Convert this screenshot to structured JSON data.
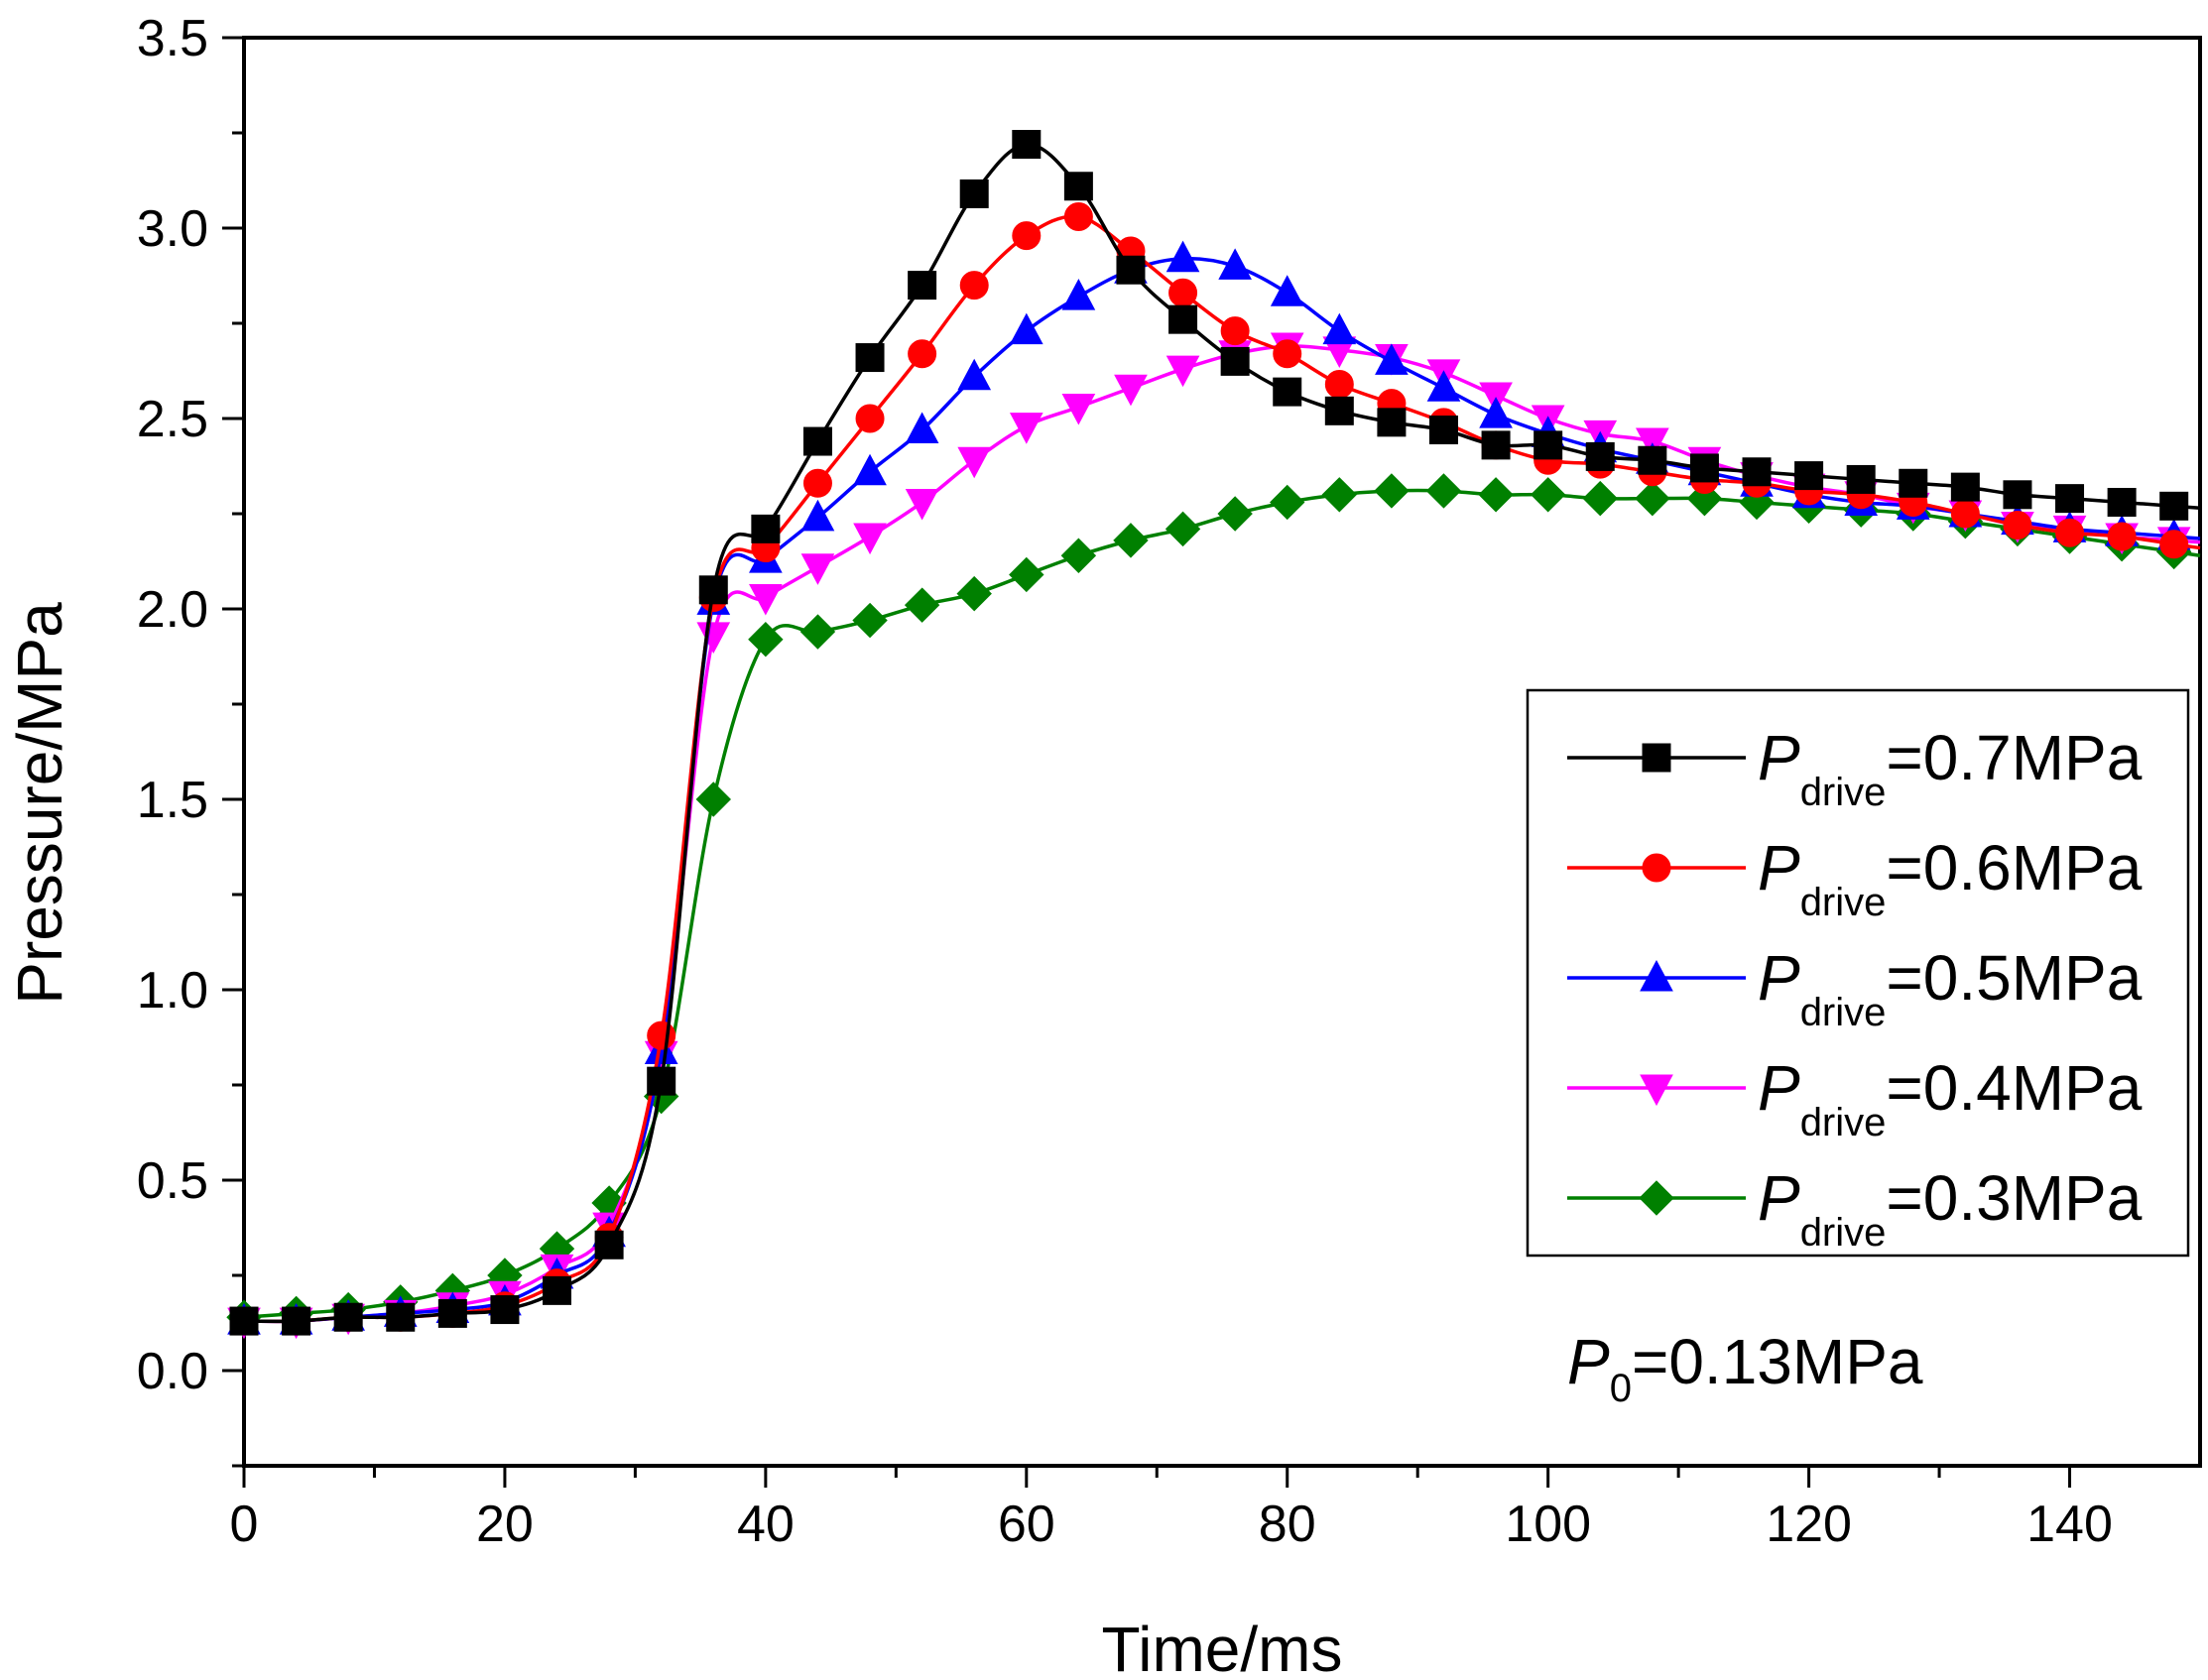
{
  "chart_data": {
    "type": "line",
    "title": "",
    "xlabel": "Time/ms",
    "ylabel": "Pressure/MPa",
    "xlim": [
      0,
      150
    ],
    "ylim": [
      -0.25,
      3.5
    ],
    "xticks": [
      0,
      20,
      40,
      60,
      80,
      100,
      120,
      140
    ],
    "yticks": [
      0.0,
      0.5,
      1.0,
      1.5,
      2.0,
      2.5,
      3.0,
      3.5
    ],
    "xtick_labels": [
      "0",
      "20",
      "40",
      "60",
      "80",
      "100",
      "120",
      "140"
    ],
    "ytick_labels": [
      "0.0",
      "0.5",
      "1.0",
      "1.5",
      "2.0",
      "2.5",
      "3.0",
      "3.5"
    ],
    "grid": false,
    "legend_position": "right",
    "annotation": {
      "symbol": "P",
      "subscript": "0",
      "text": "=0.13MPa"
    },
    "x_markers": [
      0,
      4,
      8,
      12,
      16,
      20,
      24,
      28,
      32,
      36,
      40,
      44,
      48,
      52,
      56,
      60,
      64,
      68,
      72,
      76,
      80,
      84,
      88,
      92,
      96,
      100,
      104,
      108,
      112,
      116,
      120,
      124,
      128,
      132,
      136,
      140,
      144,
      148
    ],
    "series": [
      {
        "name": "Pdrive=0.7MPa",
        "legend_symbol": "P",
        "legend_sub": "drive",
        "legend_text": "=0.7MPa",
        "color": "#000000",
        "marker": "square",
        "values": [
          0.13,
          0.13,
          0.14,
          0.14,
          0.15,
          0.16,
          0.21,
          0.33,
          0.76,
          2.05,
          2.21,
          2.44,
          2.66,
          2.85,
          3.09,
          3.22,
          3.11,
          2.89,
          2.76,
          2.65,
          2.57,
          2.52,
          2.49,
          2.47,
          2.43,
          2.43,
          2.4,
          2.39,
          2.37,
          2.36,
          2.35,
          2.34,
          2.33,
          2.32,
          2.3,
          2.29,
          2.28,
          2.27
        ]
      },
      {
        "name": "Pdrive=0.6MPa",
        "legend_symbol": "P",
        "legend_sub": "drive",
        "legend_text": "=0.6MPa",
        "color": "#ff0000",
        "marker": "circle",
        "values": [
          0.13,
          0.13,
          0.14,
          0.14,
          0.15,
          0.17,
          0.23,
          0.35,
          0.88,
          2.03,
          2.16,
          2.33,
          2.5,
          2.67,
          2.85,
          2.98,
          3.03,
          2.94,
          2.83,
          2.73,
          2.67,
          2.59,
          2.54,
          2.49,
          2.43,
          2.39,
          2.38,
          2.36,
          2.34,
          2.33,
          2.31,
          2.3,
          2.28,
          2.25,
          2.22,
          2.2,
          2.19,
          2.17
        ]
      },
      {
        "name": "Pdrive=0.5MPa",
        "legend_symbol": "P",
        "legend_sub": "drive",
        "legend_text": "=0.5MPa",
        "color": "#0000ff",
        "marker": "triangle-up",
        "values": [
          0.13,
          0.13,
          0.14,
          0.15,
          0.16,
          0.18,
          0.25,
          0.36,
          0.84,
          2.02,
          2.13,
          2.24,
          2.36,
          2.47,
          2.61,
          2.73,
          2.82,
          2.89,
          2.92,
          2.9,
          2.83,
          2.73,
          2.65,
          2.58,
          2.51,
          2.46,
          2.42,
          2.39,
          2.36,
          2.33,
          2.3,
          2.28,
          2.27,
          2.25,
          2.23,
          2.21,
          2.2,
          2.19
        ]
      },
      {
        "name": "Pdrive=0.4MPa",
        "legend_symbol": "P",
        "legend_sub": "drive",
        "legend_text": "=0.4MPa",
        "color": "#ff00ff",
        "marker": "triangle-down",
        "values": [
          0.13,
          0.13,
          0.14,
          0.15,
          0.17,
          0.2,
          0.27,
          0.38,
          0.83,
          1.93,
          2.03,
          2.11,
          2.19,
          2.28,
          2.39,
          2.48,
          2.53,
          2.58,
          2.63,
          2.67,
          2.69,
          2.68,
          2.66,
          2.62,
          2.56,
          2.5,
          2.46,
          2.44,
          2.39,
          2.35,
          2.32,
          2.3,
          2.27,
          2.25,
          2.22,
          2.21,
          2.19,
          2.18
        ]
      },
      {
        "name": "Pdrive=0.3MPa",
        "legend_symbol": "P",
        "legend_sub": "drive",
        "legend_text": "=0.3MPa",
        "color": "#008000",
        "marker": "diamond",
        "values": [
          0.14,
          0.15,
          0.16,
          0.18,
          0.21,
          0.25,
          0.32,
          0.44,
          0.72,
          1.5,
          1.92,
          1.94,
          1.97,
          2.01,
          2.04,
          2.09,
          2.14,
          2.18,
          2.21,
          2.25,
          2.28,
          2.3,
          2.31,
          2.31,
          2.3,
          2.3,
          2.29,
          2.29,
          2.29,
          2.28,
          2.27,
          2.26,
          2.25,
          2.23,
          2.21,
          2.19,
          2.17,
          2.15
        ]
      }
    ]
  }
}
